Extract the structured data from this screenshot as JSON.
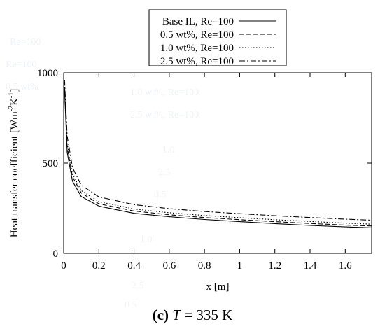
{
  "caption": {
    "label": "(c)",
    "variable": "T",
    "text": "= 335 K"
  },
  "chart_data": {
    "type": "line",
    "xlabel": "x [m]",
    "ylabel_main": "Heat transfer coefficient [Wm",
    "ylabel_sup1": "-2",
    "ylabel_mid": "K",
    "ylabel_sup2": "-1",
    "ylabel_end": "]",
    "xlim": [
      0,
      1.75
    ],
    "ylim": [
      0,
      1000
    ],
    "x_ticks": [
      0,
      0.2,
      0.4,
      0.6,
      0.8,
      1,
      1.2,
      1.4,
      1.6
    ],
    "y_ticks": [
      0,
      500,
      1000
    ],
    "legend_placement": "top-center",
    "grid": false,
    "series": [
      {
        "name": "Base IL, Re=100",
        "dash": "solid",
        "x": [
          0.005,
          0.02,
          0.05,
          0.1,
          0.2,
          0.4,
          0.6,
          0.8,
          1.0,
          1.2,
          1.4,
          1.6,
          1.75
        ],
        "y": [
          900,
          560,
          400,
          315,
          262,
          222,
          203,
          188,
          176,
          165,
          155,
          147,
          142
        ]
      },
      {
        "name": "0.5 wt%, Re=100",
        "dash": "dashed",
        "x": [
          0.005,
          0.02,
          0.05,
          0.1,
          0.2,
          0.4,
          0.6,
          0.8,
          1.0,
          1.2,
          1.4,
          1.6,
          1.75
        ],
        "y": [
          920,
          590,
          425,
          335,
          275,
          235,
          214,
          199,
          187,
          176,
          166,
          157,
          152
        ]
      },
      {
        "name": "1.0 wt%, Re=100",
        "dash": "dotted",
        "x": [
          0.005,
          0.02,
          0.05,
          0.1,
          0.2,
          0.4,
          0.6,
          0.8,
          1.0,
          1.2,
          1.4,
          1.6,
          1.75
        ],
        "y": [
          935,
          610,
          440,
          348,
          287,
          246,
          225,
          210,
          198,
          187,
          177,
          168,
          162
        ]
      },
      {
        "name": "2.5 wt%, Re=100",
        "dash": "dashdot",
        "x": [
          0.005,
          0.02,
          0.05,
          0.1,
          0.2,
          0.4,
          0.6,
          0.8,
          1.0,
          1.2,
          1.4,
          1.6,
          1.75
        ],
        "y": [
          960,
          650,
          475,
          378,
          313,
          270,
          248,
          232,
          220,
          209,
          199,
          190,
          184
        ]
      }
    ]
  },
  "watermark": [
    "Re=100",
    "Re=100",
    "0.5 wt%",
    "1.0 wt%, Re=100",
    "2.5 wt%, Re=100",
    "1.0",
    "2.5",
    "0.5",
    "1.0",
    "2.5",
    "0.5",
    "Base IL, Re=100"
  ]
}
